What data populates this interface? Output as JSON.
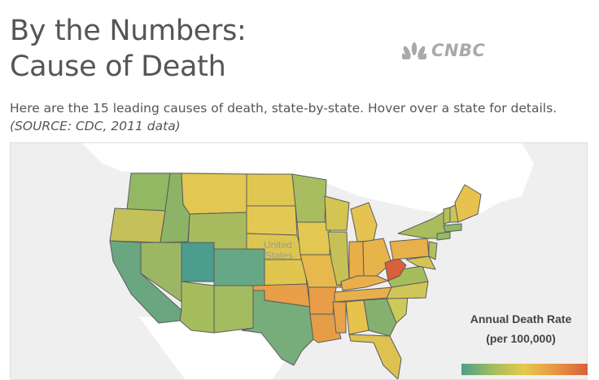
{
  "header": {
    "title_line1": "By the Numbers:",
    "title_line2": "Cause of Death",
    "brand": "CNBC",
    "brand_icon": "nbc-peacock-icon",
    "description": "Here are the 15 leading causes of death, state-by-state. Hover over a state for details.",
    "source": "(SOURCE: CDC, 2011 data)"
  },
  "map": {
    "country_label_line1": "United",
    "country_label_line2": "States",
    "colors": {
      "background": "#efefef",
      "land": "#ffffff",
      "border": "#5b5b5b",
      "lowest": "#4e9f8a",
      "highest": "#d8603a"
    }
  },
  "legend": {
    "title_line1": "Annual Death Rate",
    "title_line2": "(per 100,000)",
    "gradient": [
      "#4e9f8a",
      "#a3bd5e",
      "#e6c94b",
      "#e89445",
      "#d8603a"
    ]
  }
}
